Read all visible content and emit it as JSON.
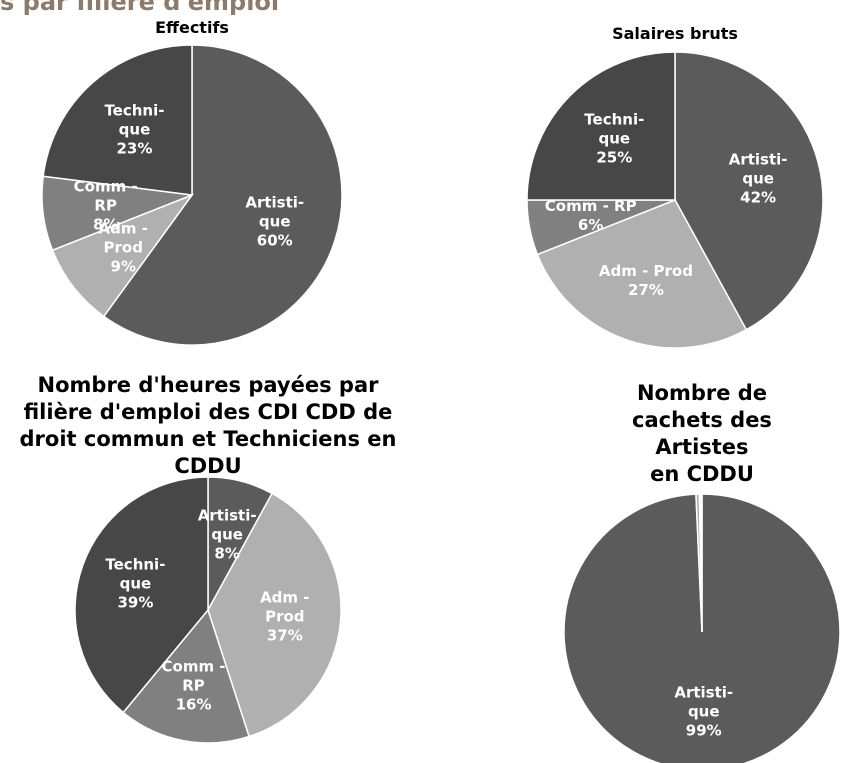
{
  "page_title": "s par filière d'emploi",
  "chart_data": [
    {
      "type": "pie",
      "title": "Effectifs",
      "categories": [
        "Artisti-\nque",
        "Adm -\nProd",
        "Comm -\nRP",
        "Techni-\nque"
      ],
      "values": [
        60,
        9,
        8,
        23
      ],
      "value_labels": [
        "60%",
        "9%",
        "8%",
        "23%"
      ],
      "colors": [
        "#5b5b5b",
        "#b0b0b0",
        "#808080",
        "#474747"
      ]
    },
    {
      "type": "pie",
      "title": "Salaires bruts",
      "categories": [
        "Artisti-\nque",
        "Adm - Prod",
        "Comm - RP",
        "Techni-\nque"
      ],
      "values": [
        42,
        27,
        6,
        25
      ],
      "value_labels": [
        "42%",
        "27%",
        "6%",
        "25%"
      ],
      "colors": [
        "#5b5b5b",
        "#b0b0b0",
        "#808080",
        "#474747"
      ]
    },
    {
      "type": "pie",
      "title": "Nombre d'heures payées par\nfilière d'emploi des CDI CDD de\ndroit commun et Techniciens en\nCDDU",
      "categories": [
        "Artisti-\nque",
        "Adm -\nProd",
        "Comm -\nRP",
        "Techni-\nque"
      ],
      "values": [
        8,
        37,
        16,
        39
      ],
      "value_labels": [
        "8%",
        "37%",
        "16%",
        "39%"
      ],
      "colors": [
        "#5b5b5b",
        "#b0b0b0",
        "#808080",
        "#474747"
      ]
    },
    {
      "type": "pie",
      "title": "Nombre de cachets des\nArtistes\nen CDDU",
      "categories": [
        "Artisti-\nque",
        null,
        null
      ],
      "values": [
        99.3,
        0.4,
        0.3
      ],
      "value_labels": [
        "99%",
        null,
        null
      ],
      "colors": [
        "#5b5b5b",
        "#b0b0b0",
        "#ffffff"
      ]
    }
  ]
}
